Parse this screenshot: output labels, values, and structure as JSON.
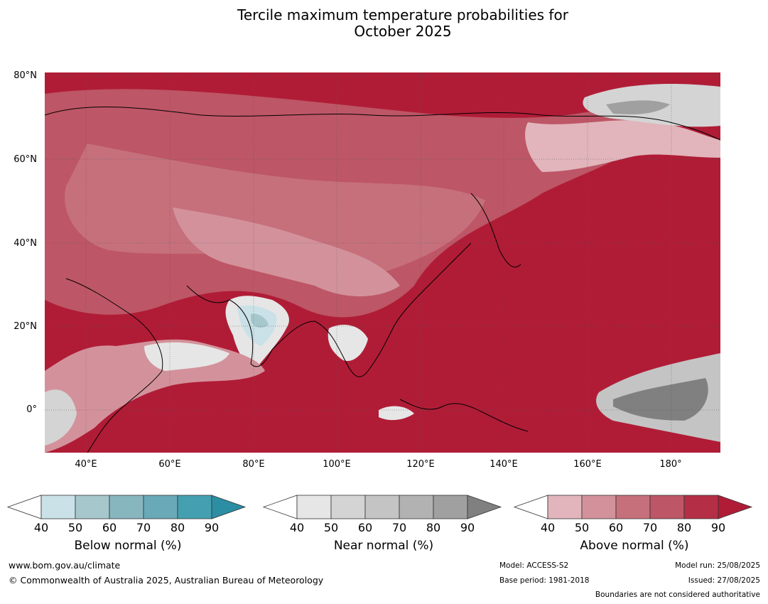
{
  "title_line1": "Tercile maximum temperature probabilities for",
  "title_line2": "October 2025",
  "lat_labels": [
    "80°N",
    "60°N",
    "40°N",
    "20°N",
    "0°"
  ],
  "lon_labels": [
    "40°E",
    "60°E",
    "80°E",
    "100°E",
    "120°E",
    "140°E",
    "160°E",
    "180°"
  ],
  "colorbars": [
    {
      "title": "Below normal (%)",
      "ticks": [
        "40",
        "50",
        "60",
        "70",
        "80",
        "90"
      ],
      "colors": [
        "#ffffff",
        "#c9e1e7",
        "#a6c7cc",
        "#88b6bf",
        "#6aa9b7",
        "#44a0b1",
        "#2b8ea3"
      ]
    },
    {
      "title": "Near normal (%)",
      "ticks": [
        "40",
        "50",
        "60",
        "70",
        "80",
        "90"
      ],
      "colors": [
        "#ffffff",
        "#e6e6e6",
        "#d4d4d4",
        "#c4c4c4",
        "#b2b2b2",
        "#a0a0a0",
        "#808080"
      ]
    },
    {
      "title": "Above normal (%)",
      "ticks": [
        "40",
        "50",
        "60",
        "70",
        "80",
        "90"
      ],
      "colors": [
        "#ffffff",
        "#e1b5bb",
        "#d3929b",
        "#c6707c",
        "#bd5666",
        "#b42f45",
        "#b01c36"
      ]
    }
  ],
  "footer": {
    "url": "www.bom.gov.au/climate",
    "copyright": "© Commonwealth of Australia 2025, Australian Bureau of Meteorology",
    "model": "Model: ACCESS-S2",
    "base_period": "Base period: 1981-2018",
    "model_run": "Model run: 25/08/2025",
    "issued": "Issued: 27/08/2025",
    "boundaries": "Boundaries are not considered authoritative"
  }
}
